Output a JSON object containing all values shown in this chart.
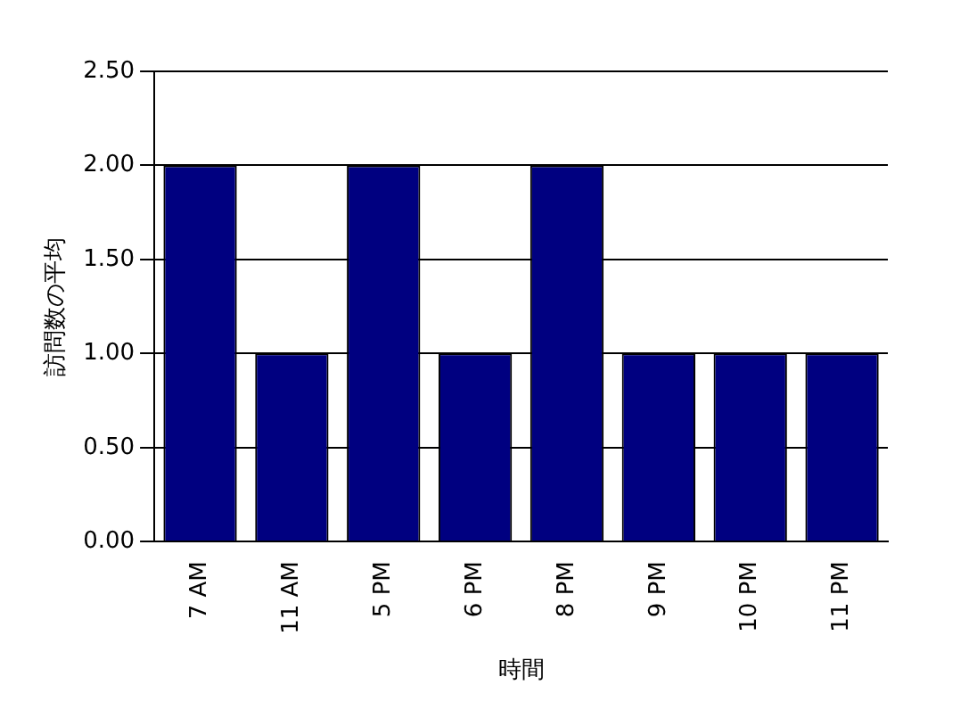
{
  "chart_data": {
    "type": "bar",
    "xlabel": "時間",
    "ylabel": "訪問数の平均",
    "categories": [
      "7 AM",
      "11 AM",
      "5 PM",
      "6 PM",
      "8 PM",
      "9 PM",
      "10 PM",
      "11 PM"
    ],
    "values": [
      2,
      1,
      2,
      1,
      2,
      1,
      1,
      1
    ],
    "color": "#000080",
    "ylim": [
      0,
      2.5
    ],
    "yticks": [
      {
        "value": 0,
        "label": "0.00"
      },
      {
        "value": 0.5,
        "label": "0.50"
      },
      {
        "value": 1,
        "label": "1.00"
      },
      {
        "value": 1.5,
        "label": "1.50"
      },
      {
        "value": 2,
        "label": "2.00"
      },
      {
        "value": 2.5,
        "label": "2.50"
      }
    ],
    "grid": "y",
    "legend": false
  }
}
